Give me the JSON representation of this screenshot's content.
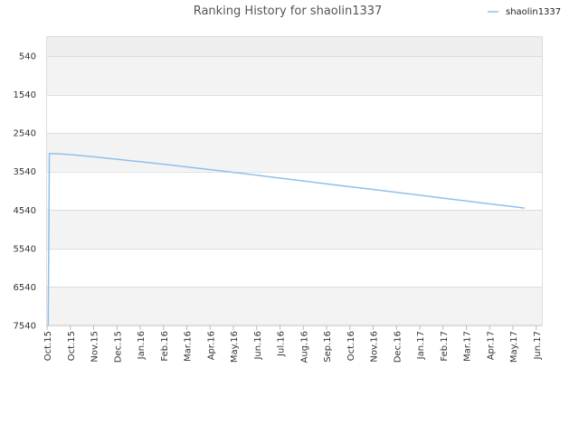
{
  "chart_data": {
    "type": "line",
    "title": "Ranking History for shaolin1337",
    "xlabel": "",
    "ylabel": "",
    "y_inverted": true,
    "y_ticks": [
      540,
      1540,
      2540,
      3540,
      4540,
      5540,
      6540,
      7540
    ],
    "x_ticks": [
      "Oct.15",
      "Oct.15",
      "Nov.15",
      "Dec.15",
      "Jan.16",
      "Feb.16",
      "Mar.16",
      "Apr.16",
      "May.16",
      "Jun.16",
      "Jul.16",
      "Aug.16",
      "Sep.16",
      "Oct.16",
      "Nov.16",
      "Dec.16",
      "Jan.17",
      "Feb.17",
      "Mar.17",
      "Apr.17",
      "May.17",
      "Jun.17"
    ],
    "legend": {
      "position": "top-right"
    },
    "grid": true,
    "series": [
      {
        "name": "shaolin1337",
        "color": "#90c0ea",
        "points": [
          {
            "x": 0.05,
            "y": 7540
          },
          {
            "x": 0.1,
            "y": 3070
          },
          {
            "x": 0.5,
            "y": 3080
          },
          {
            "x": 1,
            "y": 3100
          },
          {
            "x": 2,
            "y": 3155
          },
          {
            "x": 3,
            "y": 3220
          },
          {
            "x": 4,
            "y": 3285
          },
          {
            "x": 5,
            "y": 3350
          },
          {
            "x": 6,
            "y": 3420
          },
          {
            "x": 7,
            "y": 3490
          },
          {
            "x": 8,
            "y": 3560
          },
          {
            "x": 9,
            "y": 3635
          },
          {
            "x": 10,
            "y": 3710
          },
          {
            "x": 11,
            "y": 3785
          },
          {
            "x": 12,
            "y": 3860
          },
          {
            "x": 13,
            "y": 3935
          },
          {
            "x": 14,
            "y": 4005
          },
          {
            "x": 15,
            "y": 4080
          },
          {
            "x": 16,
            "y": 4155
          },
          {
            "x": 17,
            "y": 4230
          },
          {
            "x": 18,
            "y": 4305
          },
          {
            "x": 19,
            "y": 4380
          },
          {
            "x": 20,
            "y": 4450
          },
          {
            "x": 20.5,
            "y": 4490
          }
        ]
      }
    ]
  }
}
